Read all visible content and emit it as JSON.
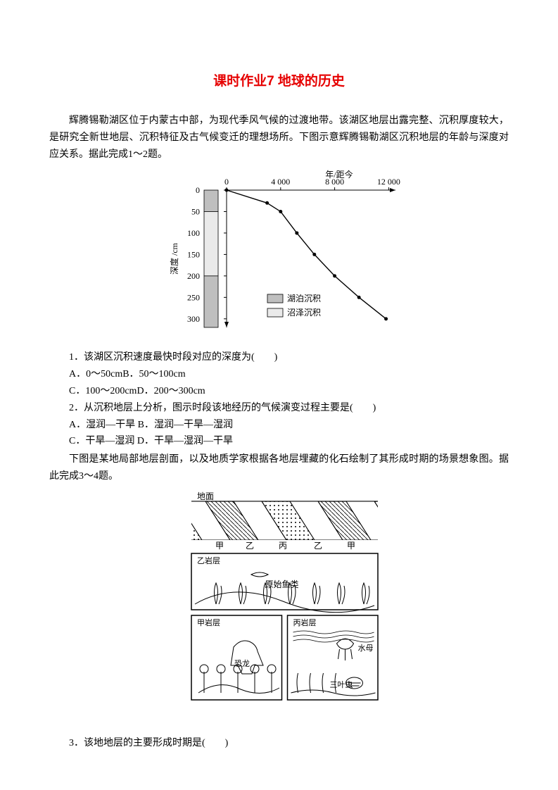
{
  "title": "课时作业7  地球的历史",
  "intro": "辉腾锡勒湖区位于内蒙古中部，为现代季风气候的过渡地带。该湖区地层出露完整、沉积厚度较大，是研究全新世地层、沉积特征及古气候变迁的理想场所。下图示意辉腾锡勒湖区沉积地层的年龄与深度对应关系。据此完成1～2题。",
  "chart": {
    "type": "line",
    "x_axis_label": "年/距今",
    "y_axis_label": "深度 /cm",
    "x_ticks": [
      0,
      4000,
      8000,
      12000
    ],
    "x_tick_labels": [
      "0",
      "4 000",
      "8 000",
      "12 000"
    ],
    "y_ticks": [
      0,
      50,
      100,
      150,
      200,
      250,
      300
    ],
    "xlim": [
      0,
      12500
    ],
    "ylim": [
      0,
      320
    ],
    "points": [
      {
        "x": 0,
        "y": 0
      },
      {
        "x": 3000,
        "y": 30
      },
      {
        "x": 4000,
        "y": 50
      },
      {
        "x": 5200,
        "y": 100
      },
      {
        "x": 6500,
        "y": 150
      },
      {
        "x": 8000,
        "y": 200
      },
      {
        "x": 9800,
        "y": 250
      },
      {
        "x": 11800,
        "y": 300
      }
    ],
    "strata": [
      {
        "from": 0,
        "to": 50,
        "fill": "#bfbfbf"
      },
      {
        "from": 50,
        "to": 200,
        "fill": "#eaeaea"
      },
      {
        "from": 200,
        "to": 320,
        "fill": "#bfbfbf"
      }
    ],
    "legend": [
      {
        "label": "湖泊沉积",
        "fill": "#bfbfbf"
      },
      {
        "label": "沼泽沉积",
        "fill": "#eaeaea"
      }
    ],
    "axis_color": "#000000",
    "line_color": "#000000",
    "marker_color": "#000000",
    "marker_size": 2.5,
    "font_size": 12
  },
  "q1": {
    "stem": "1．该湖区沉积速度最快时段对应的深度为(　　)",
    "optA": "A．0～50cm",
    "optB": "B．50～100cm",
    "optC": "C．100～200cm",
    "optD": "D．200～300cm"
  },
  "q2": {
    "stem": "2．从沉积地层上分析，图示时段该地经历的气候演变过程主要是(　　)",
    "optA": "A．湿润—干旱",
    "optB": "B．湿润—干旱—湿润",
    "optC": "C．干旱—湿润",
    "optD": "D．干旱—湿润—干旱"
  },
  "intro2": "下图是某地局部地层剖面，以及地质学家根据各地层埋藏的化石绘制了其形成时期的场景想象图。据此完成3～4题。",
  "fig2": {
    "surface_label": "地面",
    "strata_labels": [
      "甲",
      "乙",
      "丙",
      "乙",
      "甲"
    ],
    "panel_top_label": "乙岩层",
    "panel_top_caption": "原始鱼类",
    "panel_left_label": "甲岩层",
    "panel_left_item": "恐龙",
    "panel_right_label": "丙岩层",
    "panel_right_items": [
      "水母",
      "三叶虫"
    ]
  },
  "q3": {
    "stem": "3．该地地层的主要形成时期是(　　)"
  }
}
